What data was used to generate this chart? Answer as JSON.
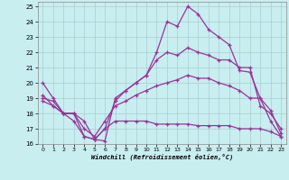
{
  "xlabel": "Windchill (Refroidissement éolien,°C)",
  "xlim": [
    -0.5,
    23.5
  ],
  "ylim": [
    16,
    25.3
  ],
  "xticks": [
    0,
    1,
    2,
    3,
    4,
    5,
    6,
    7,
    8,
    9,
    10,
    11,
    12,
    13,
    14,
    15,
    16,
    17,
    18,
    19,
    20,
    21,
    22,
    23
  ],
  "yticks": [
    16,
    17,
    18,
    19,
    20,
    21,
    22,
    23,
    24,
    25
  ],
  "background_color": "#c8eef0",
  "grid_color": "#a8cdd4",
  "line_color": "#993399",
  "lines": [
    {
      "x": [
        0,
        1,
        2,
        3,
        4,
        5,
        6,
        7,
        8,
        9,
        10,
        11,
        12,
        13,
        14,
        15,
        16,
        17,
        18,
        19,
        20,
        21,
        22,
        23
      ],
      "y": [
        20.0,
        19.0,
        18.0,
        18.0,
        17.5,
        16.3,
        16.2,
        19.0,
        19.5,
        20.0,
        20.5,
        22.0,
        24.0,
        23.7,
        25.0,
        24.5,
        23.5,
        23.0,
        22.5,
        20.8,
        20.7,
        19.0,
        17.5,
        16.5
      ]
    },
    {
      "x": [
        0,
        1,
        2,
        3,
        4,
        5,
        6,
        7,
        8,
        9,
        10,
        11,
        12,
        13,
        14,
        15,
        16,
        17,
        18,
        19,
        20,
        21,
        22,
        23
      ],
      "y": [
        19.2,
        18.5,
        18.0,
        18.0,
        16.5,
        16.3,
        17.0,
        18.8,
        19.5,
        20.0,
        20.5,
        21.5,
        22.0,
        21.8,
        22.3,
        22.0,
        21.8,
        21.5,
        21.5,
        21.0,
        21.0,
        18.5,
        18.0,
        17.0
      ]
    },
    {
      "x": [
        0,
        1,
        2,
        3,
        4,
        5,
        6,
        7,
        8,
        9,
        10,
        11,
        12,
        13,
        14,
        15,
        16,
        17,
        18,
        19,
        20,
        21,
        22,
        23
      ],
      "y": [
        19.0,
        18.8,
        18.0,
        18.0,
        17.0,
        16.5,
        17.5,
        18.5,
        18.8,
        19.2,
        19.5,
        19.8,
        20.0,
        20.2,
        20.5,
        20.3,
        20.3,
        20.0,
        19.8,
        19.5,
        19.0,
        19.0,
        18.2,
        16.7
      ]
    },
    {
      "x": [
        0,
        1,
        2,
        3,
        4,
        5,
        6,
        7,
        8,
        9,
        10,
        11,
        12,
        13,
        14,
        15,
        16,
        17,
        18,
        19,
        20,
        21,
        22,
        23
      ],
      "y": [
        18.8,
        18.5,
        18.0,
        17.5,
        16.5,
        16.3,
        17.0,
        17.5,
        17.5,
        17.5,
        17.5,
        17.3,
        17.3,
        17.3,
        17.3,
        17.2,
        17.2,
        17.2,
        17.2,
        17.0,
        17.0,
        17.0,
        16.8,
        16.5
      ]
    }
  ]
}
